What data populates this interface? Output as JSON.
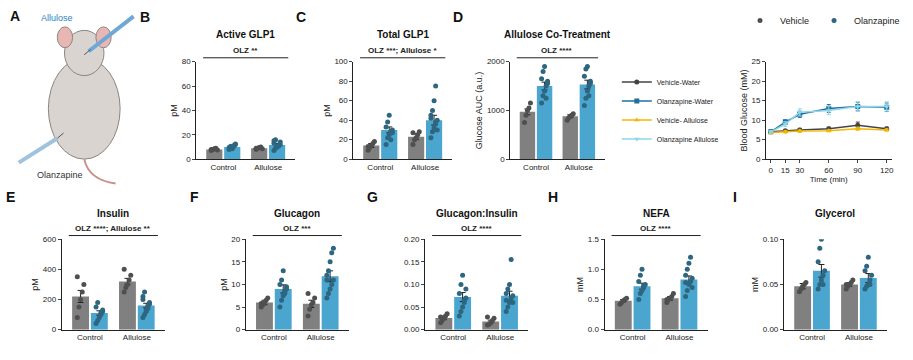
{
  "chart_data": [
    {
      "type": "illustration",
      "panel": "A",
      "texts": [
        {
          "text": "Allulose",
          "color": "#2a7fc0"
        },
        {
          "text": "Olanzapine",
          "color": "#333333"
        }
      ]
    },
    {
      "type": "bar",
      "panel": "B",
      "title": "Active GLP1",
      "ylabel": "pM",
      "stats": "OLZ **",
      "categories": [
        "Control",
        "Allulose"
      ],
      "ylim": [
        0,
        80
      ],
      "yticks": [
        0,
        20,
        40,
        60,
        80
      ],
      "grid": false,
      "series": [
        {
          "name": "Vehicle",
          "color": "#808080",
          "values": [
            8,
            9
          ],
          "errors": [
            0.5,
            0.5
          ],
          "points": [
            [
              7,
              8,
              8.5,
              9,
              7.5,
              8
            ],
            [
              8,
              9,
              9.5,
              10,
              8.5,
              9
            ]
          ]
        },
        {
          "name": "Olanzapine",
          "color": "#4aa5cf",
          "values": [
            10,
            11.5
          ],
          "errors": [
            0.9,
            1.4
          ],
          "points": [
            [
              8,
              9,
              10,
              11,
              12,
              9.5,
              10.5,
              8.5,
              11,
              12.5
            ],
            [
              7,
              9,
              10,
              11,
              12,
              13,
              16,
              10,
              11,
              14,
              15
            ]
          ]
        }
      ]
    },
    {
      "type": "bar",
      "panel": "C",
      "title": "Total GLP1",
      "ylabel": "pM",
      "stats": "OLZ ***; Allulose *",
      "categories": [
        "Control",
        "Allulose"
      ],
      "ylim": [
        0,
        100
      ],
      "yticks": [
        0,
        20,
        40,
        60,
        80,
        100
      ],
      "grid": false,
      "series": [
        {
          "name": "Vehicle",
          "color": "#808080",
          "values": [
            14,
            23
          ],
          "errors": [
            2,
            3
          ],
          "points": [
            [
              9,
              12,
              14,
              16,
              18,
              13
            ],
            [
              15,
              20,
              22,
              25,
              28,
              27
            ]
          ]
        },
        {
          "name": "Olanzapine",
          "color": "#4aa5cf",
          "values": [
            30,
            40
          ],
          "errors": [
            3,
            5
          ],
          "points": [
            [
              15,
              22,
              25,
              28,
              30,
              33,
              38,
              45,
              20,
              27
            ],
            [
              22,
              28,
              32,
              36,
              40,
              45,
              50,
              60,
              75,
              30,
              42
            ]
          ]
        }
      ]
    },
    {
      "type": "bar",
      "panel": "D",
      "title": "Allulose Co-Treatment",
      "ylabel": "Glucose AUC (a.u.)",
      "stats": "OLZ ****",
      "categories": [
        "Control",
        "Allulose"
      ],
      "ylim": [
        0,
        2000
      ],
      "yticks": [
        0,
        1000,
        2000
      ],
      "grid": false,
      "legend": "top right",
      "series": [
        {
          "name": "Vehicle",
          "color": "#808080",
          "values": [
            970,
            880
          ],
          "errors": [
            60,
            30
          ],
          "points": [
            [
              750,
              900,
              1000,
              1050,
              1150
            ],
            [
              800,
              850,
              880,
              900,
              930
            ]
          ]
        },
        {
          "name": "Olanzapine",
          "color": "#4aa5cf",
          "values": [
            1500,
            1530
          ],
          "errors": [
            80,
            90
          ],
          "points": [
            [
              1150,
              1300,
              1400,
              1500,
              1550,
              1650,
              1800,
              1900,
              1250,
              1600
            ],
            [
              1100,
              1250,
              1400,
              1500,
              1600,
              1700,
              1850,
              1900,
              1300,
              1550
            ]
          ]
        }
      ]
    },
    {
      "type": "line",
      "xlabel": "Time (min)",
      "ylabel": "Blood Glucose (mM)",
      "legend": "left",
      "grid": false,
      "x": [
        0,
        15,
        30,
        60,
        90,
        120
      ],
      "xlim": [
        -5,
        125
      ],
      "xticks": [
        0,
        15,
        30,
        60,
        90,
        120
      ],
      "ylim": [
        0,
        25
      ],
      "yticks": [
        0,
        5,
        10,
        15,
        20,
        25
      ],
      "series": [
        {
          "name": "Vehicle-Water",
          "color": "#444444",
          "marker": "circle",
          "values": [
            7,
            7.3,
            7.5,
            7.8,
            8.7,
            7.8
          ],
          "errors": [
            0.3,
            0.3,
            0.4,
            0.4,
            0.8,
            0.4
          ]
        },
        {
          "name": "Olanzapine-Water",
          "color": "#1f6fa0",
          "marker": "square",
          "values": [
            7,
            9.5,
            11.5,
            13,
            13.5,
            13.3
          ],
          "errors": [
            0.3,
            0.6,
            0.8,
            1,
            1.1,
            1.1
          ]
        },
        {
          "name": "Vehicle- Allulose",
          "color": "#f2b705",
          "marker": "triangle-up",
          "values": [
            6.8,
            7,
            7.2,
            7.3,
            7.8,
            7.5
          ],
          "errors": [
            0.3,
            0.3,
            0.3,
            0.3,
            0.4,
            0.3
          ]
        },
        {
          "name": "Olanzapine Allulose",
          "color": "#8fd6ea",
          "marker": "triangle-down",
          "values": [
            7,
            9,
            12,
            12.5,
            13.5,
            13.5
          ],
          "errors": [
            0.3,
            0.6,
            0.9,
            1.1,
            1.2,
            1.2
          ]
        }
      ]
    },
    {
      "type": "bar",
      "panel": "E",
      "title": "Insulin",
      "ylabel": "pM",
      "stats": "OLZ ****; Allulose **",
      "categories": [
        "Control",
        "Allulose"
      ],
      "ylim": [
        0,
        600
      ],
      "yticks": [
        0,
        200,
        400,
        600
      ],
      "grid": false,
      "series": [
        {
          "name": "Vehicle",
          "color": "#808080",
          "values": [
            220,
            320
          ],
          "errors": [
            40,
            20
          ],
          "points": [
            [
              80,
              150,
              200,
              250,
              300,
              350
            ],
            [
              250,
              280,
              300,
              330,
              360,
              400
            ]
          ]
        },
        {
          "name": "Olanzapine",
          "color": "#4aa5cf",
          "values": [
            110,
            160
          ],
          "errors": [
            15,
            15
          ],
          "points": [
            [
              40,
              60,
              80,
              100,
              120,
              150,
              180,
              90,
              110,
              130
            ],
            [
              80,
              100,
              130,
              150,
              170,
              200,
              250,
              120,
              140,
              180,
              220
            ]
          ]
        }
      ]
    },
    {
      "type": "bar",
      "panel": "F",
      "title": "Glucagon",
      "ylabel": "pM",
      "stats": "OLZ ***",
      "categories": [
        "Control",
        "Allulose"
      ],
      "ylim": [
        0,
        20
      ],
      "yticks": [
        0,
        5,
        10,
        15,
        20
      ],
      "grid": false,
      "series": [
        {
          "name": "Vehicle",
          "color": "#808080",
          "values": [
            6,
            5.7
          ],
          "errors": [
            0.5,
            0.8
          ],
          "points": [
            [
              5,
              5.5,
              6,
              6.5,
              7,
              5.8
            ],
            [
              3,
              4.5,
              5.5,
              6,
              7,
              8
            ]
          ]
        },
        {
          "name": "Olanzapine",
          "color": "#4aa5cf",
          "values": [
            9,
            11.8
          ],
          "errors": [
            0.9,
            1.2
          ],
          "points": [
            [
              5,
              6.5,
              7.5,
              8.5,
              9,
              10,
              11,
              13,
              8,
              9.5
            ],
            [
              7,
              8,
              9,
              10,
              11,
              12,
              13,
              15,
              17,
              18,
              11
            ]
          ]
        }
      ]
    },
    {
      "type": "bar",
      "panel": "G",
      "title": "Glucagon:Insulin",
      "stats": "OLZ ****",
      "categories": [
        "Control",
        "Allulose"
      ],
      "ylim": [
        0,
        0.2
      ],
      "yticks": [
        {
          "value": 0,
          "label": "0.00"
        },
        0.05,
        {
          "value": 0.1,
          "label": "0.10"
        },
        0.15,
        {
          "value": 0.2,
          "label": "0.20"
        }
      ],
      "grid": false,
      "series": [
        {
          "name": "Vehicle",
          "color": "#808080",
          "values": [
            0.026,
            0.018
          ],
          "errors": [
            0.004,
            0.003
          ],
          "points": [
            [
              0.015,
              0.02,
              0.025,
              0.03,
              0.035,
              0.028
            ],
            [
              0.01,
              0.012,
              0.015,
              0.02,
              0.025,
              0.028
            ]
          ]
        },
        {
          "name": "Olanzapine",
          "color": "#4aa5cf",
          "values": [
            0.072,
            0.075
          ],
          "errors": [
            0.01,
            0.01
          ],
          "points": [
            [
              0.03,
              0.04,
              0.05,
              0.06,
              0.07,
              0.08,
              0.1,
              0.12,
              0.065,
              0.09
            ],
            [
              0.04,
              0.05,
              0.06,
              0.07,
              0.075,
              0.08,
              0.09,
              0.1,
              0.155,
              0.06,
              0.065
            ]
          ]
        }
      ]
    },
    {
      "type": "bar",
      "panel": "H",
      "title": "NEFA",
      "ylabel": "mM",
      "stats": "OLZ ****",
      "categories": [
        "Control",
        "Allulose"
      ],
      "ylim": [
        0,
        1.5
      ],
      "yticks": [
        {
          "value": 0,
          "label": "0.0"
        },
        0.5,
        {
          "value": 1,
          "label": "1.0"
        },
        1.5
      ],
      "grid": false,
      "series": [
        {
          "name": "Vehicle",
          "color": "#808080",
          "values": [
            0.48,
            0.52
          ],
          "errors": [
            0.02,
            0.03
          ],
          "points": [
            [
              0.42,
              0.45,
              0.48,
              0.5,
              0.52
            ],
            [
              0.45,
              0.5,
              0.52,
              0.55,
              0.6,
              0.5
            ]
          ]
        },
        {
          "name": "Olanzapine",
          "color": "#4aa5cf",
          "values": [
            0.72,
            0.83
          ],
          "errors": [
            0.05,
            0.06
          ],
          "points": [
            [
              0.5,
              0.6,
              0.65,
              0.7,
              0.75,
              0.8,
              0.9,
              1.0,
              0.72
            ],
            [
              0.55,
              0.65,
              0.75,
              0.8,
              0.85,
              0.9,
              1.0,
              1.1,
              1.2,
              0.7,
              0.78
            ]
          ]
        }
      ]
    },
    {
      "type": "bar",
      "panel": "I",
      "title": "Glycerol",
      "ylabel": "mM",
      "categories": [
        "Control",
        "Allulose"
      ],
      "ylim": [
        0,
        0.1
      ],
      "yticks": [
        {
          "value": 0,
          "label": "0.00"
        },
        0.05,
        {
          "value": 0.1,
          "label": "0.10"
        }
      ],
      "grid": false,
      "series": [
        {
          "name": "Vehicle",
          "color": "#808080",
          "values": [
            0.048,
            0.05
          ],
          "errors": [
            0.003,
            0.002
          ],
          "points": [
            [
              0.042,
              0.045,
              0.048,
              0.05,
              0.052
            ],
            [
              0.045,
              0.048,
              0.05,
              0.052,
              0.055,
              0.05
            ]
          ]
        },
        {
          "name": "Olanzapine",
          "color": "#4aa5cf",
          "values": [
            0.065,
            0.057
          ],
          "errors": [
            0.007,
            0.005
          ],
          "points": [
            [
              0.045,
              0.05,
              0.055,
              0.06,
              0.065,
              0.075,
              0.09,
              0.1,
              0.05
            ],
            [
              0.045,
              0.048,
              0.05,
              0.055,
              0.06,
              0.065,
              0.07,
              0.08,
              0.05
            ]
          ]
        }
      ]
    }
  ]
}
